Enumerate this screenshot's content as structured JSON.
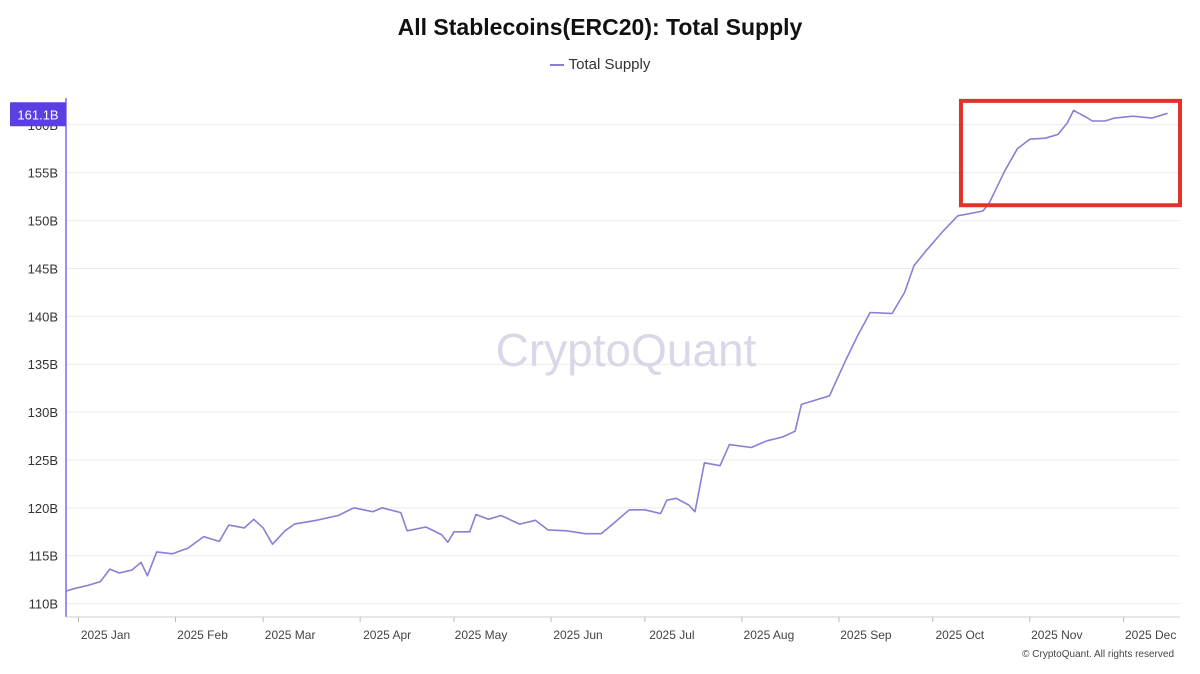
{
  "chart_data": {
    "type": "line",
    "title": "All Stablecoins(ERC20): Total Supply",
    "series": [
      {
        "name": "Total Supply",
        "color": "#8a7fd6",
        "points": [
          [
            "2024-12-28",
            111.3
          ],
          [
            "2024-12-31",
            111.6
          ],
          [
            "2025-01-04",
            111.9
          ],
          [
            "2025-01-08",
            112.3
          ],
          [
            "2025-01-11",
            113.6
          ],
          [
            "2025-01-14",
            113.2
          ],
          [
            "2025-01-18",
            113.5
          ],
          [
            "2025-01-21",
            114.3
          ],
          [
            "2025-01-23",
            112.9
          ],
          [
            "2025-01-26",
            115.4
          ],
          [
            "2025-01-31",
            115.2
          ],
          [
            "2025-02-05",
            115.8
          ],
          [
            "2025-02-10",
            117.0
          ],
          [
            "2025-02-15",
            116.5
          ],
          [
            "2025-02-18",
            118.2
          ],
          [
            "2025-02-23",
            117.9
          ],
          [
            "2025-02-26",
            118.8
          ],
          [
            "2025-03-01",
            117.9
          ],
          [
            "2025-03-04",
            116.2
          ],
          [
            "2025-03-08",
            117.6
          ],
          [
            "2025-03-11",
            118.3
          ],
          [
            "2025-03-18",
            118.7
          ],
          [
            "2025-03-25",
            119.2
          ],
          [
            "2025-03-30",
            120.0
          ],
          [
            "2025-04-05",
            119.6
          ],
          [
            "2025-04-08",
            120.0
          ],
          [
            "2025-04-14",
            119.5
          ],
          [
            "2025-04-16",
            117.6
          ],
          [
            "2025-04-22",
            118.0
          ],
          [
            "2025-04-27",
            117.2
          ],
          [
            "2025-04-29",
            116.4
          ],
          [
            "2025-05-01",
            117.5
          ],
          [
            "2025-05-06",
            117.5
          ],
          [
            "2025-05-08",
            119.3
          ],
          [
            "2025-05-12",
            118.8
          ],
          [
            "2025-05-16",
            119.2
          ],
          [
            "2025-05-22",
            118.3
          ],
          [
            "2025-05-27",
            118.7
          ],
          [
            "2025-05-31",
            117.7
          ],
          [
            "2025-06-06",
            117.6
          ],
          [
            "2025-06-12",
            117.3
          ],
          [
            "2025-06-17",
            117.3
          ],
          [
            "2025-06-20",
            118.1
          ],
          [
            "2025-06-26",
            119.8
          ],
          [
            "2025-07-01",
            119.8
          ],
          [
            "2025-07-06",
            119.4
          ],
          [
            "2025-07-08",
            120.8
          ],
          [
            "2025-07-11",
            121.0
          ],
          [
            "2025-07-15",
            120.3
          ],
          [
            "2025-07-17",
            119.6
          ],
          [
            "2025-07-20",
            124.7
          ],
          [
            "2025-07-25",
            124.4
          ],
          [
            "2025-07-28",
            126.6
          ],
          [
            "2025-08-04",
            126.3
          ],
          [
            "2025-08-09",
            127.0
          ],
          [
            "2025-08-14",
            127.4
          ],
          [
            "2025-08-18",
            128.0
          ],
          [
            "2025-08-20",
            130.8
          ],
          [
            "2025-08-25",
            131.3
          ],
          [
            "2025-08-29",
            131.7
          ],
          [
            "2025-09-03",
            135.3
          ],
          [
            "2025-09-07",
            138.0
          ],
          [
            "2025-09-11",
            140.4
          ],
          [
            "2025-09-18",
            140.3
          ],
          [
            "2025-09-22",
            142.5
          ],
          [
            "2025-09-25",
            145.3
          ],
          [
            "2025-09-29",
            146.9
          ],
          [
            "2025-10-04",
            148.8
          ],
          [
            "2025-10-09",
            150.5
          ],
          [
            "2025-10-14",
            150.8
          ],
          [
            "2025-10-17",
            151.0
          ],
          [
            "2025-10-19",
            151.8
          ],
          [
            "2025-10-24",
            155.2
          ],
          [
            "2025-10-28",
            157.5
          ],
          [
            "2025-11-01",
            158.5
          ],
          [
            "2025-11-06",
            158.6
          ],
          [
            "2025-11-10",
            159.0
          ],
          [
            "2025-11-13",
            160.2
          ],
          [
            "2025-11-15",
            161.5
          ],
          [
            "2025-11-19",
            160.8
          ],
          [
            "2025-11-21",
            160.4
          ],
          [
            "2025-11-25",
            160.4
          ],
          [
            "2025-11-28",
            160.7
          ],
          [
            "2025-12-04",
            160.9
          ],
          [
            "2025-12-10",
            160.7
          ],
          [
            "2025-12-15",
            161.2
          ]
        ]
      }
    ],
    "x_ticks": [
      {
        "date": "2025-01-01",
        "label": "2025 Jan"
      },
      {
        "date": "2025-02-01",
        "label": "2025 Feb"
      },
      {
        "date": "2025-03-01",
        "label": "2025 Mar"
      },
      {
        "date": "2025-04-01",
        "label": "2025 Apr"
      },
      {
        "date": "2025-05-01",
        "label": "2025 May"
      },
      {
        "date": "2025-06-01",
        "label": "2025 Jun"
      },
      {
        "date": "2025-07-01",
        "label": "2025 Jul"
      },
      {
        "date": "2025-08-01",
        "label": "2025 Aug"
      },
      {
        "date": "2025-09-01",
        "label": "2025 Sep"
      },
      {
        "date": "2025-10-01",
        "label": "2025 Oct"
      },
      {
        "date": "2025-11-01",
        "label": "2025 Nov"
      },
      {
        "date": "2025-12-01",
        "label": "2025 Dec"
      }
    ],
    "y_ticks": [
      {
        "value": 110,
        "label": "110B"
      },
      {
        "value": 115,
        "label": "115B"
      },
      {
        "value": 120,
        "label": "120B"
      },
      {
        "value": 125,
        "label": "125B"
      },
      {
        "value": 130,
        "label": "130B"
      },
      {
        "value": 135,
        "label": "135B"
      },
      {
        "value": 140,
        "label": "140B"
      },
      {
        "value": 145,
        "label": "145B"
      },
      {
        "value": 150,
        "label": "150B"
      },
      {
        "value": 155,
        "label": "155B"
      },
      {
        "value": 160,
        "label": "160B"
      }
    ],
    "xlim": [
      "2024-12-28",
      "2025-12-19"
    ],
    "ylim": [
      108.6,
      162.8
    ],
    "current_value": {
      "value": 161.1,
      "label": "161.1B"
    },
    "grid": true,
    "legend_position": "top-center",
    "watermark": "CryptoQuant",
    "highlight_box": {
      "from": "2025-10-10",
      "to": "2025-12-19",
      "y_from": 151.6,
      "y_to": 162.5,
      "color": "#e0332a"
    }
  },
  "copyright": "© CryptoQuant. All rights reserved"
}
